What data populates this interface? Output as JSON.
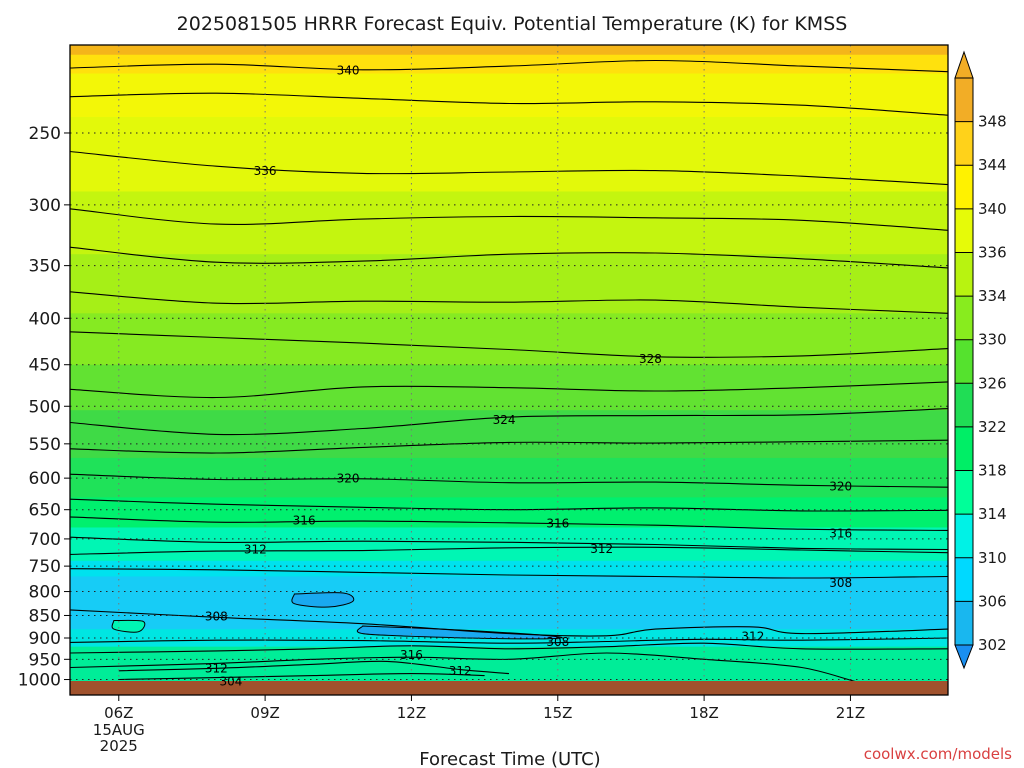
{
  "chart_data": {
    "type": "contour",
    "title": "2025081505 HRRR Forecast Equiv. Potential Temperature (K) for KMSS",
    "xlabel": "Forecast Time (UTC)",
    "ylabel": "",
    "credit": "coolwx.com/models",
    "x_ticks": [
      "06Z",
      "09Z",
      "12Z",
      "15Z",
      "18Z",
      "21Z"
    ],
    "x_date_label": [
      "15AUG",
      "2025"
    ],
    "x_range_hours": [
      5,
      23
    ],
    "y_ticks": [
      250,
      300,
      350,
      400,
      450,
      500,
      550,
      600,
      650,
      700,
      750,
      800,
      850,
      900,
      950,
      1000
    ],
    "y_range_hPa": [
      200,
      1040
    ],
    "y_scale": "log",
    "colorbar_ticks": [
      302,
      306,
      310,
      314,
      318,
      322,
      326,
      330,
      334,
      336,
      340,
      344,
      348
    ],
    "colorbar_colors": [
      "#19b7ef",
      "#00d9ff",
      "#00f2e6",
      "#00ff99",
      "#00ee66",
      "#20dd55",
      "#55e22e",
      "#88ec1e",
      "#b8f310",
      "#e6fb08",
      "#fff200",
      "#ffd21a",
      "#f2ad26"
    ],
    "contour_labels": [
      {
        "value": "340",
        "time": 10.7,
        "pressure": 213
      },
      {
        "value": "336",
        "time": 9.0,
        "pressure": 275
      },
      {
        "value": "328",
        "time": 16.9,
        "pressure": 443
      },
      {
        "value": "324",
        "time": 13.9,
        "pressure": 517
      },
      {
        "value": "320",
        "time": 10.7,
        "pressure": 600
      },
      {
        "value": "320",
        "time": 20.8,
        "pressure": 612
      },
      {
        "value": "316",
        "time": 9.8,
        "pressure": 667
      },
      {
        "value": "316",
        "time": 15.0,
        "pressure": 672
      },
      {
        "value": "316",
        "time": 20.8,
        "pressure": 690
      },
      {
        "value": "312",
        "time": 8.8,
        "pressure": 718
      },
      {
        "value": "312",
        "time": 15.9,
        "pressure": 717
      },
      {
        "value": "308",
        "time": 20.8,
        "pressure": 782
      },
      {
        "value": "308",
        "time": 8.0,
        "pressure": 851
      },
      {
        "value": "308",
        "time": 15.0,
        "pressure": 908
      },
      {
        "value": "312",
        "time": 19.0,
        "pressure": 896
      },
      {
        "value": "316",
        "time": 12.0,
        "pressure": 938
      },
      {
        "value": "312",
        "time": 8.0,
        "pressure": 971
      },
      {
        "value": "312",
        "time": 13.0,
        "pressure": 977
      },
      {
        "value": "304",
        "time": 8.3,
        "pressure": 1004
      }
    ],
    "ground_color": "#a0522d",
    "bands": [
      {
        "color": "#f4b51a",
        "top": 200,
        "bottom": 205
      },
      {
        "color": "#ffe10d",
        "top": 205,
        "bottom": 215
      },
      {
        "color": "#f3f707",
        "top": 215,
        "bottom": 240
      },
      {
        "color": "#e3f90a",
        "top": 240,
        "bottom": 290
      },
      {
        "color": "#c4f50f",
        "top": 290,
        "bottom": 340
      },
      {
        "color": "#a6ef17",
        "top": 340,
        "bottom": 395
      },
      {
        "color": "#86ea22",
        "top": 395,
        "bottom": 450
      },
      {
        "color": "#62e232",
        "top": 450,
        "bottom": 505
      },
      {
        "color": "#3fda46",
        "top": 505,
        "bottom": 570
      },
      {
        "color": "#1fe259",
        "top": 570,
        "bottom": 630
      },
      {
        "color": "#00f06e",
        "top": 630,
        "bottom": 680
      },
      {
        "color": "#00f6b4",
        "top": 680,
        "bottom": 740
      },
      {
        "color": "#00e2ee",
        "top": 740,
        "bottom": 770
      },
      {
        "color": "#17ccf6",
        "top": 770,
        "bottom": 880
      },
      {
        "color": "#00e6e2",
        "top": 880,
        "bottom": 920
      },
      {
        "color": "#00ed98",
        "top": 920,
        "bottom": 1040
      }
    ],
    "contours": [
      {
        "value": 340,
        "points": [
          [
            5,
            212
          ],
          [
            8,
            210
          ],
          [
            11,
            213
          ],
          [
            14,
            211
          ],
          [
            17,
            208
          ],
          [
            20,
            211
          ],
          [
            23,
            214
          ]
        ]
      },
      {
        "value": 338,
        "points": [
          [
            5,
            228
          ],
          [
            8,
            226
          ],
          [
            11,
            229
          ],
          [
            14,
            232
          ],
          [
            17,
            231
          ],
          [
            20,
            233
          ],
          [
            23,
            239
          ]
        ]
      },
      {
        "value": 336,
        "points": [
          [
            5,
            262
          ],
          [
            8,
            272
          ],
          [
            11,
            277
          ],
          [
            14,
            276
          ],
          [
            17,
            275
          ],
          [
            20,
            279
          ],
          [
            23,
            285
          ]
        ]
      },
      {
        "value": 334,
        "points": [
          [
            5,
            303
          ],
          [
            8,
            315
          ],
          [
            11,
            311
          ],
          [
            14,
            309
          ],
          [
            17,
            310
          ],
          [
            20,
            312
          ],
          [
            23,
            320
          ]
        ]
      },
      {
        "value": 332,
        "points": [
          [
            5,
            334
          ],
          [
            8,
            347
          ],
          [
            11,
            346
          ],
          [
            14,
            340
          ],
          [
            17,
            339
          ],
          [
            20,
            344
          ],
          [
            23,
            352
          ]
        ]
      },
      {
        "value": 330,
        "points": [
          [
            5,
            374
          ],
          [
            8,
            385
          ],
          [
            11,
            383
          ],
          [
            14,
            384
          ],
          [
            17,
            382
          ],
          [
            20,
            389
          ],
          [
            23,
            395
          ]
        ]
      },
      {
        "value": 328,
        "points": [
          [
            5,
            414
          ],
          [
            8,
            420
          ],
          [
            11,
            426
          ],
          [
            14,
            433
          ],
          [
            17,
            441
          ],
          [
            20,
            440
          ],
          [
            23,
            432
          ]
        ]
      },
      {
        "value": 326,
        "points": [
          [
            5,
            479
          ],
          [
            8,
            489
          ],
          [
            11,
            476
          ],
          [
            14,
            477
          ],
          [
            17,
            481
          ],
          [
            20,
            477
          ],
          [
            23,
            470
          ]
        ]
      },
      {
        "value": 324,
        "points": [
          [
            5,
            521
          ],
          [
            8,
            537
          ],
          [
            11,
            529
          ],
          [
            14,
            514
          ],
          [
            17,
            512
          ],
          [
            20,
            511
          ],
          [
            23,
            503
          ]
        ]
      },
      {
        "value": 322,
        "points": [
          [
            5,
            557
          ],
          [
            8,
            563
          ],
          [
            11,
            555
          ],
          [
            14,
            548
          ],
          [
            17,
            549
          ],
          [
            20,
            547
          ],
          [
            23,
            545
          ]
        ]
      },
      {
        "value": 320,
        "points": [
          [
            5,
            594
          ],
          [
            8,
            602
          ],
          [
            11,
            601
          ],
          [
            14,
            607
          ],
          [
            17,
            606
          ],
          [
            20,
            611
          ],
          [
            23,
            614
          ]
        ]
      },
      {
        "value": 318,
        "points": [
          [
            5,
            633
          ],
          [
            8,
            641
          ],
          [
            11,
            646
          ],
          [
            14,
            650
          ],
          [
            17,
            647
          ],
          [
            20,
            652
          ],
          [
            23,
            651
          ]
        ]
      },
      {
        "value": 316,
        "points": [
          [
            5,
            662
          ],
          [
            8,
            671
          ],
          [
            11,
            669
          ],
          [
            14,
            672
          ],
          [
            17,
            676
          ],
          [
            20,
            683
          ],
          [
            23,
            685
          ]
        ]
      },
      {
        "value": 314,
        "points": [
          [
            5,
            697
          ],
          [
            8,
            706
          ],
          [
            11,
            704
          ],
          [
            14,
            706
          ],
          [
            17,
            710
          ],
          [
            20,
            717
          ],
          [
            23,
            719
          ]
        ]
      },
      {
        "value": 312,
        "points": [
          [
            5,
            728
          ],
          [
            8,
            722
          ],
          [
            11,
            721
          ],
          [
            14,
            716
          ],
          [
            17,
            715
          ],
          [
            20,
            720
          ],
          [
            23,
            725
          ]
        ]
      },
      {
        "value": 310,
        "points": [
          [
            5,
            755
          ],
          [
            8,
            757
          ],
          [
            11,
            762
          ],
          [
            14,
            767
          ],
          [
            17,
            770
          ],
          [
            20,
            773
          ],
          [
            23,
            770
          ]
        ]
      },
      {
        "value": 308,
        "points": [
          [
            5,
            838
          ],
          [
            8,
            854
          ],
          [
            11,
            868
          ],
          [
            14,
            890
          ],
          [
            16,
            895
          ],
          [
            17,
            880
          ],
          [
            19,
            875
          ],
          [
            20,
            890
          ],
          [
            23,
            880
          ]
        ]
      },
      {
        "value": 310,
        "points": [
          [
            5,
            910
          ],
          [
            8,
            905
          ],
          [
            11,
            906
          ],
          [
            14,
            912
          ],
          [
            16,
            908
          ],
          [
            18,
            903
          ],
          [
            20,
            905
          ],
          [
            23,
            900
          ]
        ]
      },
      {
        "value": 312,
        "points": [
          [
            5,
            935
          ],
          [
            8,
            930
          ],
          [
            10,
            925
          ],
          [
            12,
            918
          ],
          [
            14,
            925
          ],
          [
            16,
            920
          ],
          [
            18,
            912
          ],
          [
            20,
            925
          ],
          [
            23,
            925
          ]
        ]
      },
      {
        "value": 314,
        "points": [
          [
            5,
            970
          ],
          [
            8,
            960
          ],
          [
            10,
            950
          ],
          [
            12,
            945
          ],
          [
            14,
            950
          ],
          [
            16,
            935
          ],
          [
            18,
            950
          ],
          [
            20,
            970
          ],
          [
            21.5,
            1015
          ],
          [
            23,
            1015
          ]
        ]
      },
      {
        "value": 316,
        "points": [
          [
            6,
            978
          ],
          [
            8,
            972
          ],
          [
            10,
            962
          ],
          [
            11.5,
            955
          ],
          [
            13,
            975
          ],
          [
            14,
            985
          ]
        ]
      },
      {
        "value": 312,
        "points": [
          [
            6,
            1000
          ],
          [
            8,
            995
          ],
          [
            10,
            990
          ],
          [
            12,
            985
          ],
          [
            13.5,
            990
          ]
        ]
      }
    ],
    "closed_regions": [
      {
        "color": "#19a9f0",
        "points": [
          [
            9.6,
            805
          ],
          [
            10.6,
            803
          ],
          [
            10.8,
            820
          ],
          [
            10.3,
            832
          ],
          [
            9.6,
            825
          ]
        ]
      },
      {
        "color": "#19a9f0",
        "points": [
          [
            11,
            873
          ],
          [
            13,
            882
          ],
          [
            15,
            897
          ],
          [
            14.5,
            902
          ],
          [
            12.5,
            898
          ],
          [
            11,
            890
          ]
        ]
      },
      {
        "color": "#00f6b4",
        "points": [
          [
            5.9,
            861
          ],
          [
            6.5,
            863
          ],
          [
            6.4,
            886
          ],
          [
            5.9,
            880
          ]
        ]
      }
    ]
  }
}
